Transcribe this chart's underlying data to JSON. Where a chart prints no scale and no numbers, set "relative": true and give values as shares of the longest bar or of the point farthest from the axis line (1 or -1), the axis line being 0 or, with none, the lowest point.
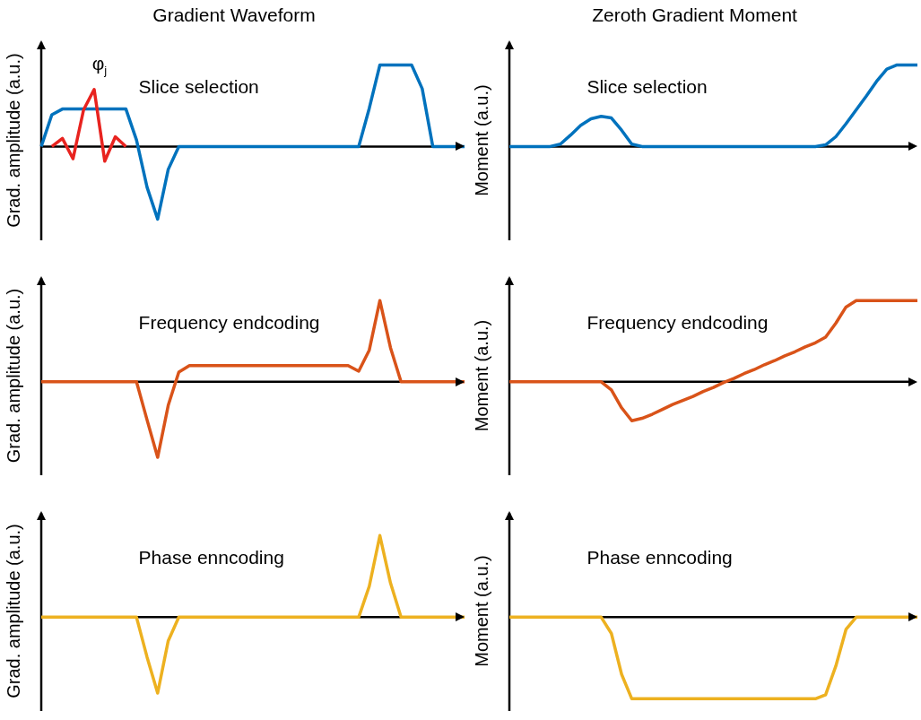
{
  "chart_data": [
    {
      "type": "line",
      "relative": true,
      "title": "Gradient Waveform",
      "ylabel": "Grad. amplitude (a.u.)",
      "tick_labels": false,
      "annotations": [
        "Slice selection",
        "φ$_{j}$"
      ],
      "categories": [
        null,
        null,
        null,
        null,
        null,
        null,
        null,
        null,
        null,
        null,
        null,
        null,
        null,
        null,
        null,
        null,
        null,
        null,
        null,
        null,
        null,
        null,
        null,
        null,
        null,
        null,
        null,
        null,
        null,
        null,
        null,
        null,
        null,
        null,
        null,
        null,
        null,
        null,
        null,
        null,
        null
      ],
      "series": [
        {
          "color": "#0072bd",
          "values": [
            0,
            0.39,
            0.46,
            0.46,
            0.46,
            0.46,
            0.46,
            0.46,
            0.46,
            0.08,
            -0.5,
            -0.89,
            -0.28,
            0,
            0,
            0,
            0,
            0,
            0,
            0,
            0,
            0,
            0,
            0,
            0,
            0,
            0,
            0,
            0,
            0,
            0,
            0.47,
            1,
            1,
            1,
            1,
            0.71,
            0,
            0,
            0,
            0
          ]
        },
        {
          "color": "#e8231f",
          "values": [
            null,
            0,
            0.1,
            -0.15,
            0.45,
            0.7,
            -0.18,
            0.12,
            0,
            null,
            null,
            null,
            null,
            null,
            null,
            null,
            null,
            null,
            null,
            null,
            null,
            null,
            null,
            null,
            null,
            null,
            null,
            null,
            null,
            null,
            null,
            null,
            null,
            null,
            null,
            null,
            null,
            null,
            null,
            null,
            null
          ]
        }
      ]
    },
    {
      "type": "line",
      "relative": true,
      "title": "Zeroth Gradient Moment",
      "ylabel": "Moment (a.u.)",
      "tick_labels": false,
      "annotations": [
        "Slice selection"
      ],
      "categories": [
        null,
        null,
        null,
        null,
        null,
        null,
        null,
        null,
        null,
        null,
        null,
        null,
        null,
        null,
        null,
        null,
        null,
        null,
        null,
        null,
        null,
        null,
        null,
        null,
        null,
        null,
        null,
        null,
        null,
        null,
        null,
        null,
        null,
        null,
        null,
        null,
        null,
        null,
        null,
        null,
        null
      ],
      "series": [
        {
          "color": "#0072bd",
          "values": [
            0,
            0,
            0,
            0,
            0,
            0.03,
            0.14,
            0.26,
            0.34,
            0.37,
            0.35,
            0.2,
            0.03,
            0,
            0,
            0,
            0,
            0,
            0,
            0,
            0,
            0,
            0,
            0,
            0,
            0,
            0,
            0,
            0,
            0,
            0,
            0.02,
            0.12,
            0.28,
            0.45,
            0.62,
            0.8,
            0.95,
            1,
            1,
            1
          ]
        }
      ]
    },
    {
      "type": "line",
      "relative": true,
      "ylabel": "Grad. amplitude (a.u.)",
      "tick_labels": false,
      "annotations": [
        "Frequency endcoding"
      ],
      "categories": [
        null,
        null,
        null,
        null,
        null,
        null,
        null,
        null,
        null,
        null,
        null,
        null,
        null,
        null,
        null,
        null,
        null,
        null,
        null,
        null,
        null,
        null,
        null,
        null,
        null,
        null,
        null,
        null,
        null,
        null,
        null,
        null,
        null,
        null,
        null,
        null,
        null,
        null,
        null,
        null,
        null
      ],
      "series": [
        {
          "color": "#d95319",
          "values": [
            0,
            0,
            0,
            0,
            0,
            0,
            0,
            0,
            0,
            0,
            -0.47,
            -0.93,
            -0.29,
            0.12,
            0.2,
            0.2,
            0.2,
            0.2,
            0.2,
            0.2,
            0.2,
            0.2,
            0.2,
            0.2,
            0.2,
            0.2,
            0.2,
            0.2,
            0.2,
            0.2,
            0.13,
            0.39,
            1,
            0.42,
            0,
            0,
            0,
            0,
            0,
            0,
            0
          ]
        }
      ]
    },
    {
      "type": "line",
      "relative": true,
      "ylabel": "Moment (a.u.)",
      "tick_labels": false,
      "annotations": [
        "Frequency endcoding"
      ],
      "categories": [
        null,
        null,
        null,
        null,
        null,
        null,
        null,
        null,
        null,
        null,
        null,
        null,
        null,
        null,
        null,
        null,
        null,
        null,
        null,
        null,
        null,
        null,
        null,
        null,
        null,
        null,
        null,
        null,
        null,
        null,
        null,
        null,
        null,
        null,
        null,
        null,
        null,
        null,
        null,
        null,
        null
      ],
      "series": [
        {
          "color": "#d95319",
          "values": [
            0,
            0,
            0,
            0,
            0,
            0,
            0,
            0,
            0,
            0,
            -0.1,
            -0.32,
            -0.48,
            -0.45,
            -0.4,
            -0.34,
            -0.28,
            -0.23,
            -0.18,
            -0.12,
            -0.07,
            -0.01,
            0.04,
            0.1,
            0.15,
            0.21,
            0.26,
            0.32,
            0.37,
            0.43,
            0.48,
            0.55,
            0.72,
            0.92,
            1,
            1,
            1,
            1,
            1,
            1,
            1
          ]
        }
      ]
    },
    {
      "type": "line",
      "relative": true,
      "ylabel": "Grad. amplitude (a.u.)",
      "tick_labels": false,
      "annotations": [
        "Phase enncoding"
      ],
      "categories": [
        null,
        null,
        null,
        null,
        null,
        null,
        null,
        null,
        null,
        null,
        null,
        null,
        null,
        null,
        null,
        null,
        null,
        null,
        null,
        null,
        null,
        null,
        null,
        null,
        null,
        null,
        null,
        null,
        null,
        null,
        null,
        null,
        null,
        null,
        null,
        null,
        null,
        null,
        null,
        null,
        null
      ],
      "series": [
        {
          "color": "#edb120",
          "values": [
            0,
            0,
            0,
            0,
            0,
            0,
            0,
            0,
            0,
            0,
            -0.49,
            -0.93,
            -0.29,
            0,
            0,
            0,
            0,
            0,
            0,
            0,
            0,
            0,
            0,
            0,
            0,
            0,
            0,
            0,
            0,
            0,
            0,
            0.38,
            1,
            0.42,
            0,
            0,
            0,
            0,
            0,
            0,
            0
          ]
        }
      ]
    },
    {
      "type": "line",
      "relative": true,
      "ylabel": "Moment (a.u.)",
      "tick_labels": false,
      "annotations": [
        "Phase enncoding"
      ],
      "categories": [
        null,
        null,
        null,
        null,
        null,
        null,
        null,
        null,
        null,
        null,
        null,
        null,
        null,
        null,
        null,
        null,
        null,
        null,
        null,
        null,
        null,
        null,
        null,
        null,
        null,
        null,
        null,
        null,
        null,
        null,
        null,
        null,
        null,
        null,
        null,
        null,
        null,
        null,
        null,
        null,
        null
      ],
      "series": [
        {
          "color": "#edb120",
          "values": [
            0,
            0,
            0,
            0,
            0,
            0,
            0,
            0,
            0,
            0,
            -0.2,
            -0.7,
            -1,
            -1,
            -1,
            -1,
            -1,
            -1,
            -1,
            -1,
            -1,
            -1,
            -1,
            -1,
            -1,
            -1,
            -1,
            -1,
            -1,
            -1,
            -1,
            -0.95,
            -0.6,
            -0.15,
            0,
            0,
            0,
            0,
            0,
            0,
            0
          ]
        }
      ]
    }
  ]
}
